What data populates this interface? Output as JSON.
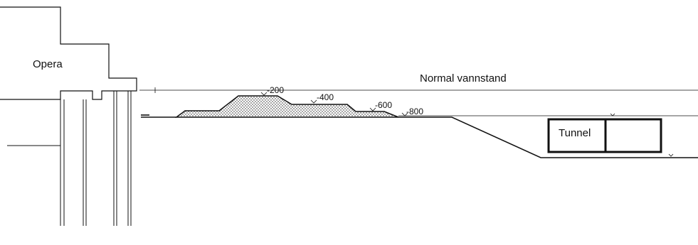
{
  "labels": {
    "building": "Opera",
    "water_level": "Normal vannstand",
    "tunnel": "Tunnel"
  },
  "depth_marks": [
    "-200",
    "-400",
    "-600",
    "-800"
  ],
  "colors": {
    "line": "#111111",
    "background": "#ffffff",
    "fill_dots": "#222222"
  }
}
